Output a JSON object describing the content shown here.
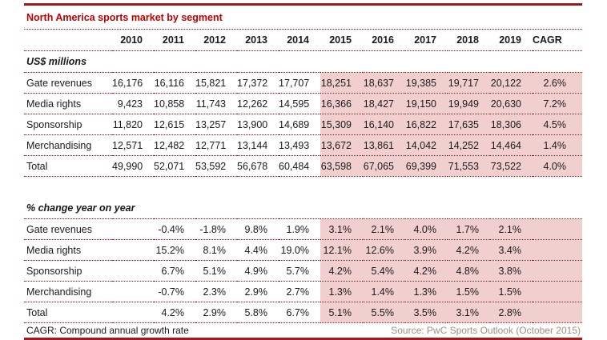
{
  "title": "North America sports market by segment",
  "chart_data": {
    "type": "table",
    "title": "North America sports market by segment",
    "columns": [
      "2010",
      "2011",
      "2012",
      "2013",
      "2014",
      "2015",
      "2016",
      "2017",
      "2018",
      "2019",
      "CAGR"
    ],
    "highlight_columns": [
      "2015",
      "2016",
      "2017",
      "2018",
      "2019",
      "CAGR"
    ],
    "sections": [
      {
        "heading": "US$ millions",
        "rows": [
          {
            "label": "Gate revenues",
            "values": [
              "16,176",
              "16,116",
              "15,821",
              "17,372",
              "17,707",
              "18,251",
              "18,637",
              "19,385",
              "19,717",
              "20,122",
              "2.6%"
            ]
          },
          {
            "label": "Media rights",
            "values": [
              "9,423",
              "10,858",
              "11,743",
              "12,262",
              "14,595",
              "16,366",
              "18,427",
              "19,150",
              "19,949",
              "20,630",
              "7.2%"
            ]
          },
          {
            "label": "Sponsorship",
            "values": [
              "11,820",
              "12,615",
              "13,257",
              "13,900",
              "14,689",
              "15,309",
              "16,140",
              "16,822",
              "17,635",
              "18,306",
              "4.5%"
            ]
          },
          {
            "label": "Merchandising",
            "values": [
              "12,571",
              "12,482",
              "12,771",
              "13,144",
              "13,493",
              "13,672",
              "13,861",
              "14,042",
              "14,252",
              "14,464",
              "1.4%"
            ]
          },
          {
            "label": "Total",
            "values": [
              "49,990",
              "52,071",
              "53,592",
              "56,678",
              "60,484",
              "63,598",
              "67,065",
              "69,399",
              "71,553",
              "73,522",
              "4.0%"
            ]
          }
        ]
      },
      {
        "heading": "% change year on year",
        "rows": [
          {
            "label": "Gate revenues",
            "values": [
              "",
              "-0.4%",
              "-1.8%",
              "9.8%",
              "1.9%",
              "3.1%",
              "2.1%",
              "4.0%",
              "1.7%",
              "2.1%",
              ""
            ]
          },
          {
            "label": "Media rights",
            "values": [
              "",
              "15.2%",
              "8.1%",
              "4.4%",
              "19.0%",
              "12.1%",
              "12.6%",
              "3.9%",
              "4.2%",
              "3.4%",
              ""
            ]
          },
          {
            "label": "Sponsorship",
            "values": [
              "",
              "6.7%",
              "5.1%",
              "4.9%",
              "5.7%",
              "4.2%",
              "5.4%",
              "4.2%",
              "4.8%",
              "3.8%",
              ""
            ]
          },
          {
            "label": "Merchandising",
            "values": [
              "",
              "-0.7%",
              "2.3%",
              "2.9%",
              "2.7%",
              "1.3%",
              "1.4%",
              "1.3%",
              "1.5%",
              "1.5%",
              ""
            ]
          },
          {
            "label": "Total",
            "values": [
              "",
              "4.2%",
              "2.9%",
              "5.8%",
              "6.7%",
              "5.1%",
              "5.5%",
              "3.5%",
              "3.1%",
              "2.8%",
              ""
            ]
          }
        ]
      }
    ],
    "footer": {
      "note": "CAGR: Compound annual growth rate",
      "source": "Source: PwC Sports Outlook (October 2015)"
    }
  },
  "colors": {
    "title_red": "#c00000",
    "rule_dark_red": "#9e1b1b",
    "dotted_line_red": "#c00000",
    "highlight_pink": "#f2cfcf",
    "body_text": "#1a1a1a",
    "source_text": "#9d9181"
  }
}
